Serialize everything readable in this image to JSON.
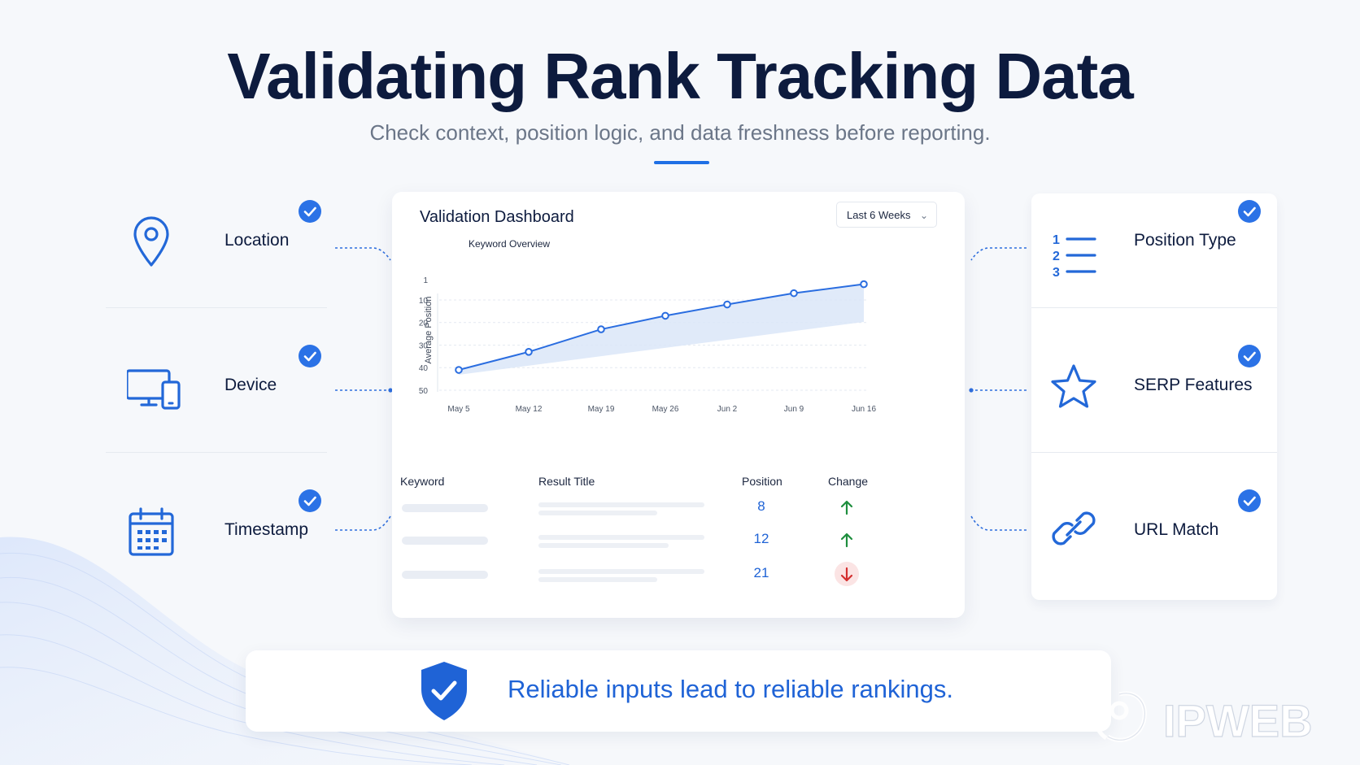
{
  "header": {
    "title": "Validating Rank Tracking Data",
    "subtitle": "Check context, position logic, and data freshness before reporting."
  },
  "left_items": [
    {
      "label": "Location",
      "icon": "map-pin-icon",
      "checked": true
    },
    {
      "label": "Device",
      "icon": "devices-icon",
      "checked": true
    },
    {
      "label": "Timestamp",
      "icon": "calendar-icon",
      "checked": true
    }
  ],
  "right_items": [
    {
      "label": "Position Type",
      "icon": "numbered-list-icon",
      "checked": true
    },
    {
      "label": "SERP Features",
      "icon": "star-icon",
      "checked": true
    },
    {
      "label": "URL Match",
      "icon": "link-icon",
      "checked": true
    }
  ],
  "dashboard": {
    "title": "Validation Dashboard",
    "range_select": "Last 6 Weeks",
    "table": {
      "headers": [
        "Keyword",
        "Result Title",
        "Position",
        "Change"
      ],
      "rows": [
        {
          "position": "8",
          "change": "up"
        },
        {
          "position": "12",
          "change": "up"
        },
        {
          "position": "21",
          "change": "down"
        }
      ]
    }
  },
  "chart_data": {
    "type": "area",
    "title": "Keyword Overview",
    "ylabel": "Average Position",
    "xlabel": "",
    "categories": [
      "May 5",
      "May 12",
      "May 19",
      "May 26",
      "Jun 2",
      "Jun 9",
      "Jun 16"
    ],
    "x_values": [
      0,
      1,
      2,
      3,
      4,
      5,
      6
    ],
    "y_values": [
      41,
      33,
      23,
      17,
      12,
      7,
      3
    ],
    "y_ticks": [
      1,
      10,
      20,
      30,
      40,
      50
    ],
    "ylim": [
      1,
      50
    ],
    "y_inverted": true,
    "line_color": "#2a6de0",
    "fill_color": "#dbe6f8",
    "grid": "dashed"
  },
  "banner": {
    "text": "Reliable inputs lead to reliable rankings.",
    "icon": "shield-check-icon"
  },
  "logo": {
    "text": "IPWEB"
  },
  "colors": {
    "accent": "#2b72e6",
    "title": "#0d1b3e",
    "positive": "#1e8e3e",
    "negative": "#d32f2f"
  }
}
